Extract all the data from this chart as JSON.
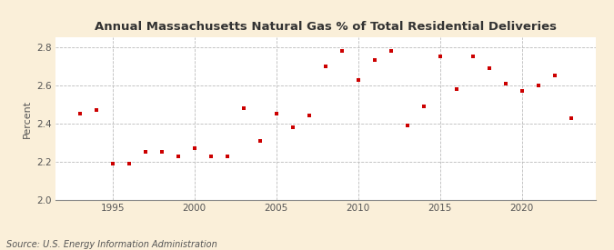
{
  "title": "Annual Massachusetts Natural Gas % of Total Residential Deliveries",
  "ylabel": "Percent",
  "source": "Source: U.S. Energy Information Administration",
  "background_color": "#faefd9",
  "plot_background_color": "#ffffff",
  "marker_color": "#cc0000",
  "xlim": [
    1991.5,
    2024.5
  ],
  "ylim": [
    2.0,
    2.85
  ],
  "yticks": [
    2.0,
    2.2,
    2.4,
    2.6,
    2.8
  ],
  "xticks": [
    1995,
    2000,
    2005,
    2010,
    2015,
    2020
  ],
  "data": {
    "1993": 2.45,
    "1994": 2.47,
    "1995": 2.19,
    "1996": 2.19,
    "1997": 2.25,
    "1998": 2.25,
    "1999": 2.23,
    "2000": 2.27,
    "2001": 2.23,
    "2002": 2.23,
    "2003": 2.48,
    "2004": 2.31,
    "2005": 2.45,
    "2006": 2.38,
    "2007": 2.44,
    "2008": 2.7,
    "2009": 2.78,
    "2010": 2.63,
    "2011": 2.73,
    "2012": 2.78,
    "2013": 2.39,
    "2014": 2.49,
    "2015": 2.75,
    "2016": 2.58,
    "2017": 2.75,
    "2018": 2.69,
    "2019": 2.61,
    "2020": 2.57,
    "2021": 2.6,
    "2022": 2.65,
    "2023": 2.43
  }
}
